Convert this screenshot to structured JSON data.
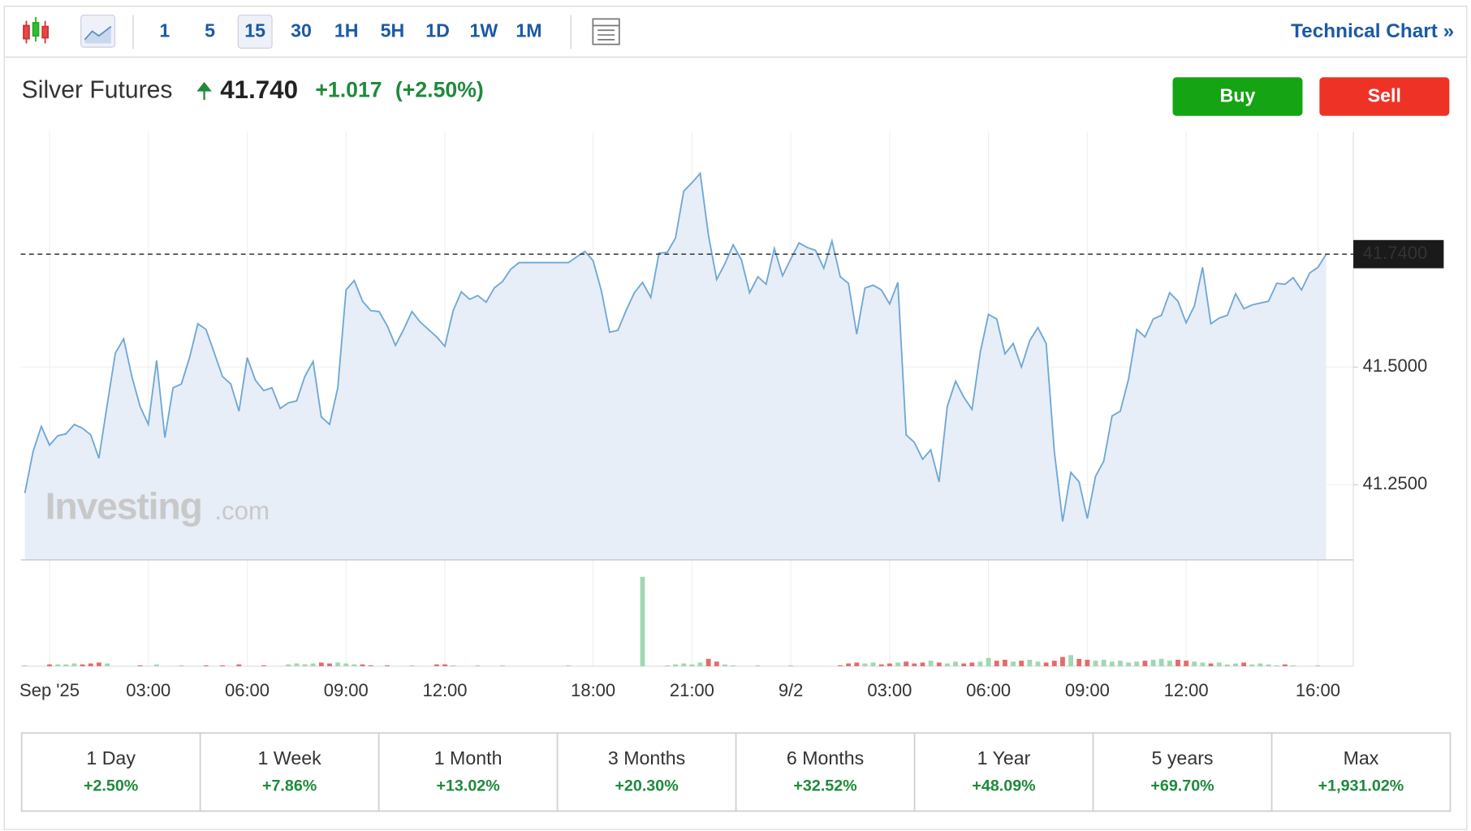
{
  "toolbar": {
    "intervals": [
      "1",
      "5",
      "15",
      "30",
      "1H",
      "5H",
      "1D",
      "1W",
      "1M"
    ],
    "selected": "15",
    "link": "Technical Chart »"
  },
  "header": {
    "name": "Silver Futures",
    "price": "41.740",
    "change": "+1.017",
    "change_pct": "(+2.50%)"
  },
  "buttons": {
    "buy": "Buy",
    "sell": "Sell"
  },
  "watermark": {
    "brand": "Investing",
    "suffix": ".com"
  },
  "chart_data": {
    "type": "line",
    "color": "#6fa8d6",
    "fill": "#e7eef8",
    "x": [
      0,
      1,
      2,
      3,
      4,
      5,
      6,
      7,
      8,
      9,
      10,
      11,
      12,
      13,
      14,
      15,
      16,
      17,
      18,
      19,
      20,
      21,
      22,
      23,
      24,
      25,
      26,
      27,
      28,
      29,
      30,
      31,
      32,
      33,
      34,
      35,
      36,
      37,
      38,
      39,
      40,
      41,
      42,
      43,
      44,
      45,
      46,
      47,
      48,
      49,
      50,
      51,
      52,
      53,
      54,
      55,
      56,
      57,
      58,
      59,
      60,
      61,
      62,
      63,
      64,
      65,
      66,
      67,
      68,
      69,
      70,
      71,
      72,
      73,
      74,
      75,
      76,
      77,
      78,
      79,
      80,
      81,
      82,
      83,
      84,
      85,
      86,
      87,
      88,
      89,
      90,
      91,
      92,
      93,
      94,
      95,
      96,
      97,
      98,
      99,
      100,
      101,
      102,
      103,
      104,
      105,
      106,
      107,
      108,
      109,
      110,
      111,
      112,
      113,
      114,
      115,
      116,
      117,
      118,
      119,
      120,
      121,
      122,
      123,
      124,
      125,
      126,
      127,
      128,
      129,
      130,
      131,
      132,
      133,
      134,
      135,
      136,
      137,
      138,
      139,
      140,
      141,
      142,
      143,
      144,
      145,
      146,
      147,
      148,
      149,
      150,
      151,
      152,
      153,
      154,
      155,
      156,
      157,
      158
    ],
    "values": [
      41.232,
      41.32,
      41.374,
      41.334,
      41.354,
      41.358,
      41.378,
      41.37,
      41.356,
      41.306,
      41.42,
      41.53,
      41.56,
      41.48,
      41.416,
      41.378,
      41.514,
      41.35,
      41.456,
      41.464,
      41.52,
      41.592,
      41.58,
      41.53,
      41.48,
      41.464,
      41.406,
      41.52,
      41.472,
      41.45,
      41.456,
      41.412,
      41.424,
      41.428,
      41.48,
      41.512,
      41.394,
      41.378,
      41.456,
      41.664,
      41.684,
      41.64,
      41.62,
      41.618,
      41.588,
      41.546,
      41.58,
      41.618,
      41.596,
      41.58,
      41.564,
      41.544,
      41.62,
      41.66,
      41.644,
      41.652,
      41.638,
      41.668,
      41.682,
      41.708,
      41.722,
      41.722,
      41.722,
      41.722,
      41.722,
      41.722,
      41.722,
      41.734,
      41.746,
      41.726,
      41.662,
      41.574,
      41.578,
      41.62,
      41.658,
      41.68,
      41.648,
      41.742,
      41.744,
      41.774,
      41.874,
      41.892,
      41.912,
      41.78,
      41.686,
      41.72,
      41.76,
      41.728,
      41.658,
      41.692,
      41.676,
      41.752,
      41.694,
      41.73,
      41.764,
      41.754,
      41.748,
      41.71,
      41.768,
      41.692,
      41.678,
      41.57,
      41.668,
      41.674,
      41.664,
      41.634,
      41.68,
      41.356,
      41.34,
      41.304,
      41.324,
      41.256,
      41.416,
      41.47,
      41.436,
      41.41,
      41.532,
      41.612,
      41.602,
      41.528,
      41.55,
      41.5,
      41.556,
      41.584,
      41.55,
      41.32,
      41.172,
      41.276,
      41.256,
      41.178,
      41.268,
      41.3,
      41.396,
      41.406,
      41.474,
      41.58,
      41.564,
      41.602,
      41.61,
      41.658,
      41.64,
      41.594,
      41.63,
      41.712,
      41.592,
      41.604,
      41.61,
      41.656,
      41.624,
      41.632,
      41.636,
      41.64,
      41.678,
      41.676,
      41.69,
      41.664,
      41.7,
      41.712,
      41.74
    ],
    "volume": [
      1,
      0,
      0,
      2,
      2,
      2,
      3,
      2,
      3,
      4,
      3,
      0,
      0,
      0,
      1,
      0,
      2,
      0,
      0,
      1,
      0,
      0,
      1,
      0,
      1,
      0,
      2,
      0,
      0,
      1,
      0,
      0,
      2,
      3,
      2,
      3,
      4,
      3,
      4,
      3,
      2,
      2,
      1,
      0,
      1,
      0,
      0,
      1,
      0,
      0,
      2,
      2,
      1,
      0,
      0,
      1,
      0,
      0,
      1,
      0,
      0,
      0,
      0,
      0,
      0,
      0,
      1,
      0,
      0,
      0,
      0,
      0,
      0,
      0,
      0,
      97,
      0,
      0,
      1,
      2,
      3,
      2,
      4,
      8,
      5,
      2,
      1,
      0,
      0,
      1,
      0,
      0,
      0,
      1,
      0,
      0,
      0,
      0,
      0,
      1,
      3,
      4,
      3,
      4,
      2,
      3,
      4,
      5,
      3,
      4,
      6,
      4,
      3,
      5,
      3,
      4,
      5,
      9,
      6,
      7,
      5,
      6,
      7,
      5,
      4,
      6,
      10,
      12,
      8,
      7,
      6,
      7,
      5,
      6,
      4,
      5,
      6,
      7,
      8,
      6,
      7,
      6,
      5,
      4,
      3,
      4,
      2,
      3,
      4,
      2,
      3,
      2,
      1,
      2,
      1,
      0,
      0,
      1,
      0
    ],
    "vlim": [
      0,
      100
    ],
    "up_color": "#9fd8b2",
    "down_color": "#e36b6b",
    "xlim": [
      -0.5,
      161.3
    ],
    "ylim": [
      41.09,
      42.0
    ],
    "xticks": [
      {
        "value": 3,
        "label": "Sep '25"
      },
      {
        "value": 15,
        "label": "03:00"
      },
      {
        "value": 27,
        "label": "06:00"
      },
      {
        "value": 39,
        "label": "09:00"
      },
      {
        "value": 51,
        "label": "12:00"
      },
      {
        "value": 69,
        "label": "18:00"
      },
      {
        "value": 81,
        "label": "21:00"
      },
      {
        "value": 93,
        "label": "9/2"
      },
      {
        "value": 105,
        "label": "03:00"
      },
      {
        "value": 117,
        "label": "06:00"
      },
      {
        "value": 129,
        "label": "09:00"
      },
      {
        "value": 141,
        "label": "12:00"
      },
      {
        "value": 157,
        "label": "16:00"
      }
    ],
    "yticks": [
      {
        "value": 41.25,
        "label": "41.2500"
      },
      {
        "value": 41.5,
        "label": "41.5000"
      }
    ],
    "last": {
      "value": 41.74,
      "label": "41.7400"
    },
    "grid": true
  },
  "periods": [
    {
      "label": "1 Day",
      "change": "+2.50%"
    },
    {
      "label": "1 Week",
      "change": "+7.86%"
    },
    {
      "label": "1 Month",
      "change": "+13.02%"
    },
    {
      "label": "3 Months",
      "change": "+20.30%"
    },
    {
      "label": "6 Months",
      "change": "+32.52%"
    },
    {
      "label": "1 Year",
      "change": "+48.09%"
    },
    {
      "label": "5 years",
      "change": "+69.70%"
    },
    {
      "label": "Max",
      "change": "+1,931.02%"
    }
  ]
}
